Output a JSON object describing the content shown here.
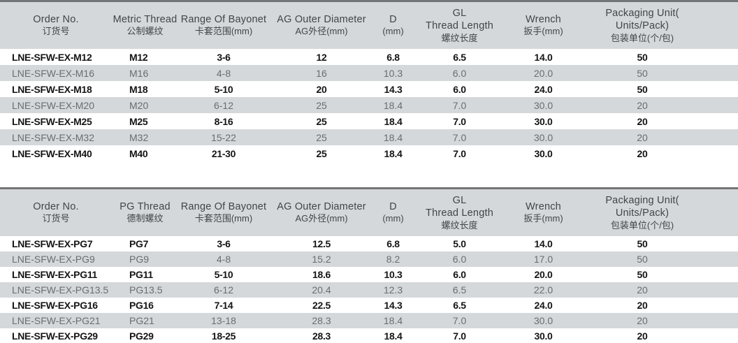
{
  "colors": {
    "top_line": "#737577",
    "header_band": "#d5d8da",
    "header_text": "#414548",
    "emphasis_row_text": "#151515",
    "alternate_row_text": "#6a6d6f",
    "white_row": "#ffffff"
  },
  "tables": [
    {
      "name": "metric-thread-table",
      "headers": [
        {
          "en": "Order No.",
          "zh": "订货号"
        },
        {
          "en": "Metric Thread",
          "zh": "公制螺纹"
        },
        {
          "en": "Range Of Bayonet",
          "zh": "卡套范围(mm)"
        },
        {
          "en": "AG Outer Diameter",
          "zh": "AG外径(mm)"
        },
        {
          "en": "D",
          "zh": "(mm)"
        },
        {
          "en": "GL",
          "en2": "Thread Length",
          "zh": "螺纹长度"
        },
        {
          "en": "Wrench",
          "zh": "扳手(mm)"
        },
        {
          "en": "Packaging Unit( Units/Pack)",
          "zh": "包装单位(个/包)"
        }
      ],
      "rows": [
        {
          "emphasis": true,
          "cells": [
            "LNE-SFW-EX-M12",
            "M12",
            "3-6",
            "12",
            "6.8",
            "6.5",
            "14.0",
            "50"
          ]
        },
        {
          "emphasis": false,
          "cells": [
            "LNE-SFW-EX-M16",
            "M16",
            "4-8",
            "16",
            "10.3",
            "6.0",
            "20.0",
            "50"
          ]
        },
        {
          "emphasis": true,
          "cells": [
            "LNE-SFW-EX-M18",
            "M18",
            "5-10",
            "20",
            "14.3",
            "6.0",
            "24.0",
            "50"
          ]
        },
        {
          "emphasis": false,
          "cells": [
            "LNE-SFW-EX-M20",
            "M20",
            "6-12",
            "25",
            "18.4",
            "7.0",
            "30.0",
            "20"
          ]
        },
        {
          "emphasis": true,
          "cells": [
            "LNE-SFW-EX-M25",
            "M25",
            "8-16",
            "25",
            "18.4",
            "7.0",
            "30.0",
            "20"
          ]
        },
        {
          "emphasis": false,
          "cells": [
            "LNE-SFW-EX-M32",
            "M32",
            "15-22",
            "25",
            "18.4",
            "7.0",
            "30.0",
            "20"
          ]
        },
        {
          "emphasis": true,
          "cells": [
            "LNE-SFW-EX-M40",
            "M40",
            "21-30",
            "25",
            "18.4",
            "7.0",
            "30.0",
            "20"
          ]
        }
      ]
    },
    {
      "name": "pg-thread-table",
      "headers": [
        {
          "en": "Order No.",
          "zh": "订货号"
        },
        {
          "en": "PG Thread",
          "zh": "德制螺纹"
        },
        {
          "en": "Range Of Bayonet",
          "zh": "卡套范围(mm)"
        },
        {
          "en": "AG Outer Diameter",
          "zh": "AG外径(mm)"
        },
        {
          "en": "D",
          "zh": "(mm)"
        },
        {
          "en": "GL",
          "en2": "Thread Length",
          "zh": "螺纹长度"
        },
        {
          "en": "Wrench",
          "zh": "扳手(mm)"
        },
        {
          "en": "Packaging Unit( Units/Pack)",
          "zh": "包装单位(个/包)"
        }
      ],
      "rows": [
        {
          "emphasis": true,
          "cells": [
            "LNE-SFW-EX-PG7",
            "PG7",
            "3-6",
            "12.5",
            "6.8",
            "5.0",
            "14.0",
            "50"
          ]
        },
        {
          "emphasis": false,
          "cells": [
            "LNE-SFW-EX-PG9",
            "PG9",
            "4-8",
            "15.2",
            "8.2",
            "6.0",
            "17.0",
            "50"
          ]
        },
        {
          "emphasis": true,
          "cells": [
            "LNE-SFW-EX-PG11",
            "PG11",
            "5-10",
            "18.6",
            "10.3",
            "6.0",
            "20.0",
            "50"
          ]
        },
        {
          "emphasis": false,
          "cells": [
            "LNE-SFW-EX-PG13.5",
            "PG13.5",
            "6-12",
            "20.4",
            "12.3",
            "6.5",
            "22.0",
            "20"
          ]
        },
        {
          "emphasis": true,
          "cells": [
            "LNE-SFW-EX-PG16",
            "PG16",
            "7-14",
            "22.5",
            "14.3",
            "6.5",
            "24.0",
            "20"
          ]
        },
        {
          "emphasis": false,
          "cells": [
            "LNE-SFW-EX-PG21",
            "PG21",
            "13-18",
            "28.3",
            "18.4",
            "7.0",
            "30.0",
            "20"
          ]
        },
        {
          "emphasis": true,
          "cells": [
            "LNE-SFW-EX-PG29",
            "PG29",
            "18-25",
            "28.3",
            "18.4",
            "7.0",
            "30.0",
            "20"
          ]
        }
      ]
    }
  ]
}
